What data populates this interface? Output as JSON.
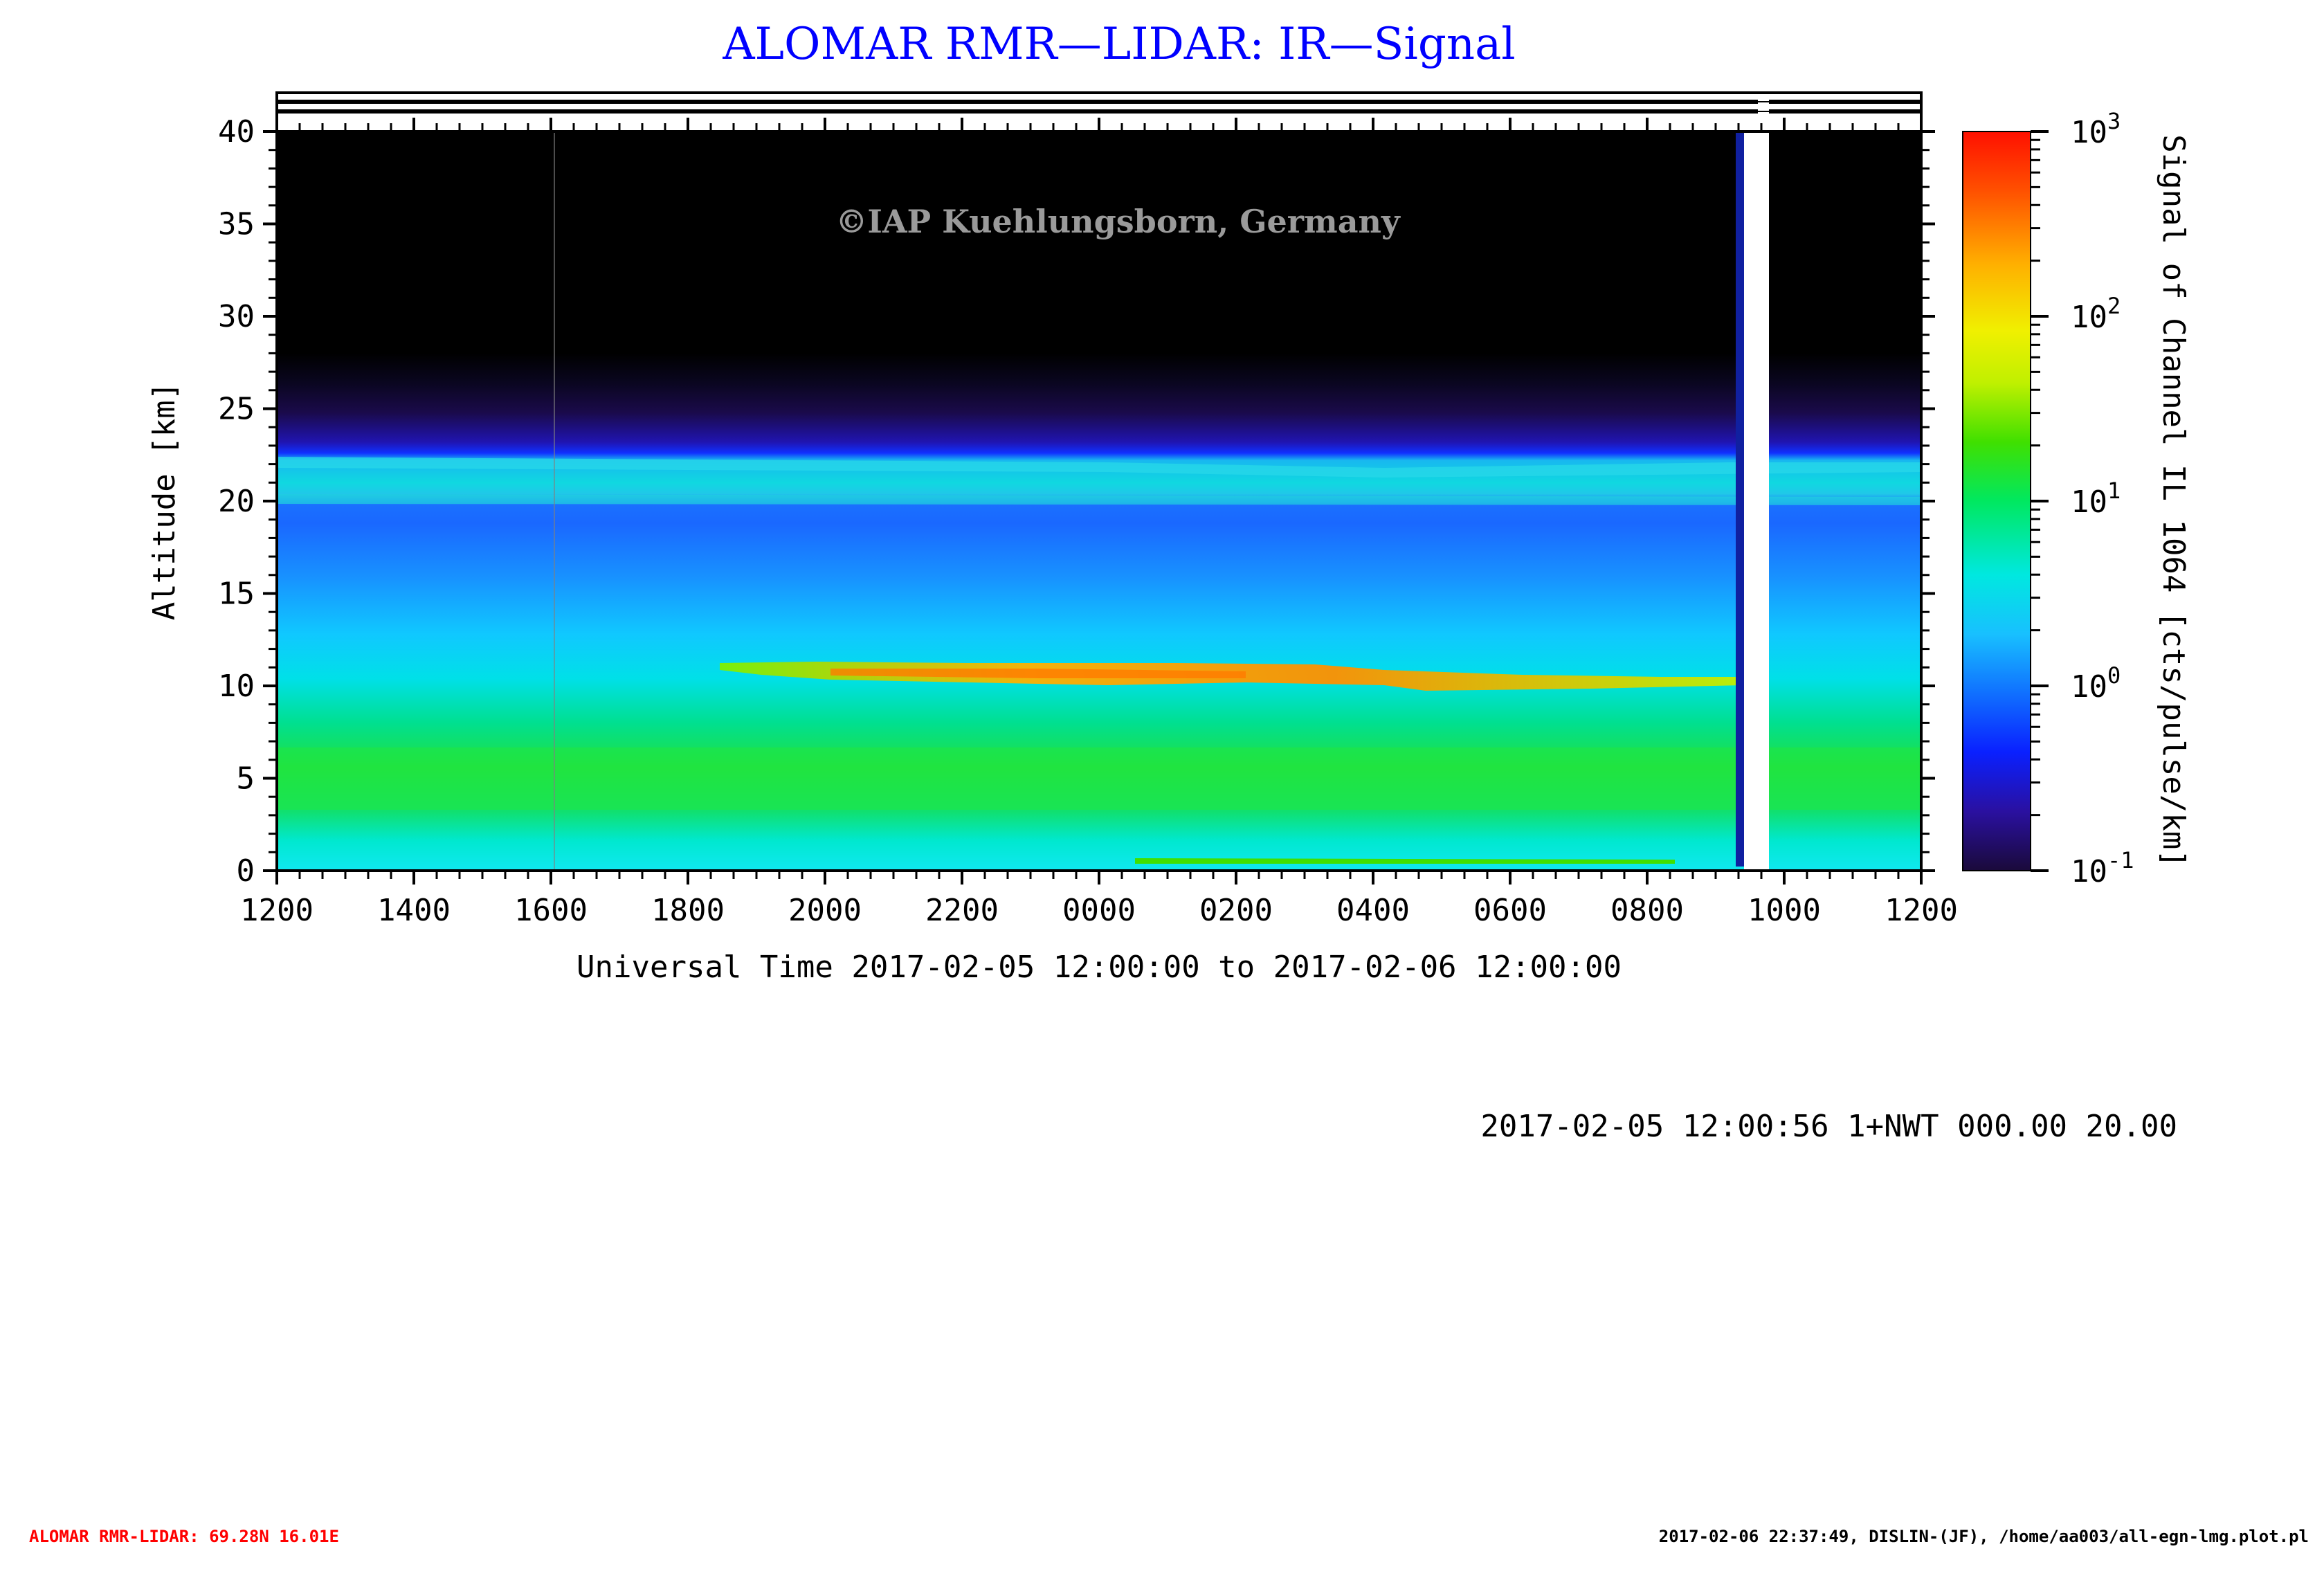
{
  "chart_data": {
    "type": "heatmap",
    "title": "ALOMAR RMR—LIDAR: IR—Signal",
    "watermark": "©IAP Kuehlungsborn, Germany",
    "xlabel": "Universal Time 2017-02-05 12:00:00 to 2017-02-06 12:00:00",
    "ylabel": "Altitude [km]",
    "colorbar_label": "Signal of Channel IL 1064 [cts/pulse/km]",
    "xlim": [
      "2017-02-05 12:00",
      "2017-02-06 12:00"
    ],
    "ylim": [
      0,
      40
    ],
    "x_ticks": [
      "1200",
      "1400",
      "1600",
      "1800",
      "2000",
      "2200",
      "0000",
      "0200",
      "0400",
      "0600",
      "0800",
      "1000",
      "1200"
    ],
    "y_ticks": [
      0,
      5,
      10,
      15,
      20,
      25,
      30,
      35,
      40
    ],
    "colorbar_scale": "log",
    "colorbar_range": [
      0.1,
      1000
    ],
    "colorbar_ticks": [
      {
        "value": 0.1,
        "base": "10",
        "exp": "-1"
      },
      {
        "value": 1,
        "base": "10",
        "exp": "0"
      },
      {
        "value": 10,
        "base": "10",
        "exp": "1"
      },
      {
        "value": 100,
        "base": "10",
        "exp": "2"
      },
      {
        "value": 1000,
        "base": "10",
        "exp": "3"
      }
    ],
    "colormap": [
      "#1a0a3a",
      "#2a10a0",
      "#0a20ff",
      "#1070ff",
      "#18c0ff",
      "#00e8e0",
      "#00e860",
      "#40e000",
      "#c0f000",
      "#f0f000",
      "#ffb000",
      "#ff5000",
      "#ff1000"
    ],
    "data_gap": {
      "start": "0930",
      "end": "0945",
      "note": "no data"
    },
    "features": [
      {
        "name": "stratospheric aerosol layer",
        "altitude_km": [
          19.5,
          22.5
        ]
      },
      {
        "name": "cirrus cloud",
        "time_range": [
          "1930",
          "0940"
        ],
        "altitude_km": [
          9.8,
          11.5
        ],
        "max_signal": 300
      }
    ]
  },
  "annotation": "2017-02-05 12:00:56 1+NWT 000.00 20.00",
  "footer": {
    "left": "ALOMAR RMR-LIDAR: 69.28N 16.01E",
    "right": "2017-02-06 22:37:49, DISLIN-(JF), /home/aa003/all-egn-lmg.plot.pl"
  },
  "colors": {
    "title": "#0000ff",
    "footer_left": "#ff0000",
    "watermark": "#9a9a9a",
    "gap": "#ffffff"
  }
}
